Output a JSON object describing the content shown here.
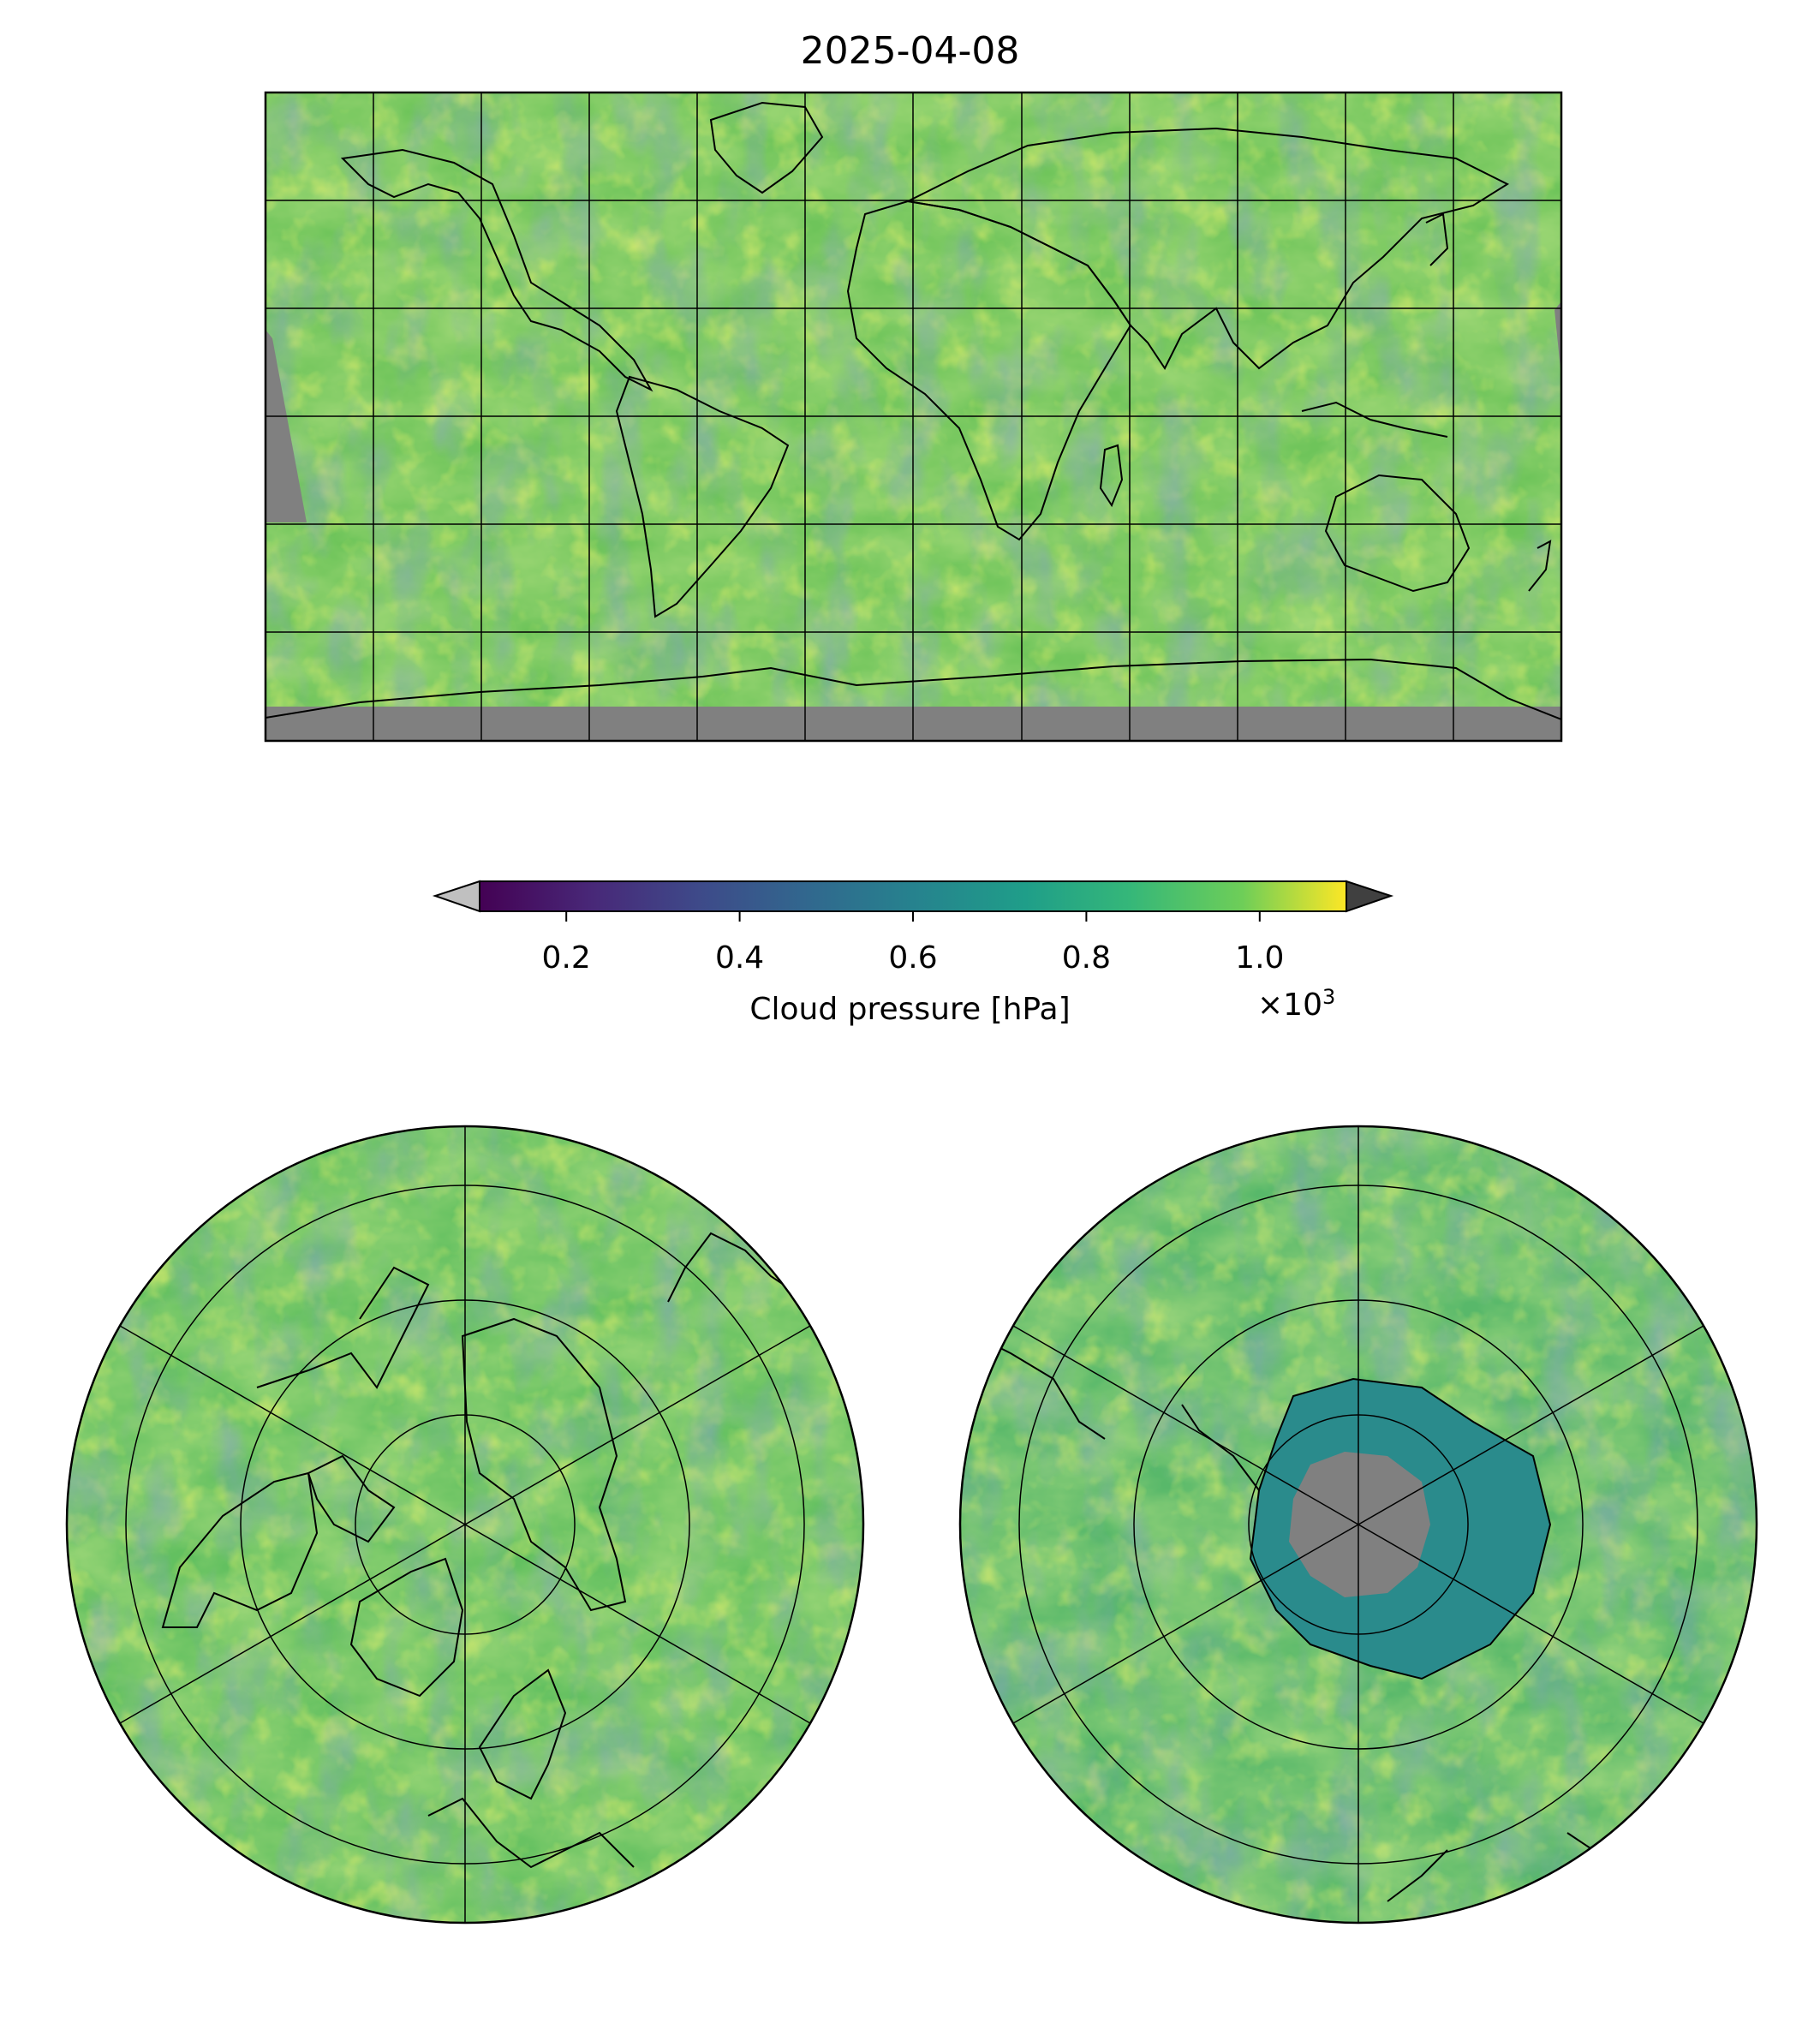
{
  "title": "2025-04-08",
  "colorbar": {
    "label": "Cloud pressure [hPa]",
    "multiplier_base": "×10",
    "multiplier_exp": "3",
    "ticks": [
      "0.2",
      "0.4",
      "0.6",
      "0.8",
      "1.0"
    ],
    "tick_values": [
      0.2,
      0.4,
      0.6,
      0.8,
      1.0
    ],
    "range": [
      0.1,
      1.1
    ],
    "colormap": "viridis",
    "extend_under_color": "#c0c0c0",
    "extend_over_color": "#404040"
  },
  "maps": {
    "global": {
      "projection": "PlateCarree",
      "gridlines": "30° spacing",
      "no_data_color": "#808080"
    },
    "north_polar": {
      "projection": "NorthPolarStereo"
    },
    "south_polar": {
      "projection": "SouthPolarStereo"
    }
  }
}
